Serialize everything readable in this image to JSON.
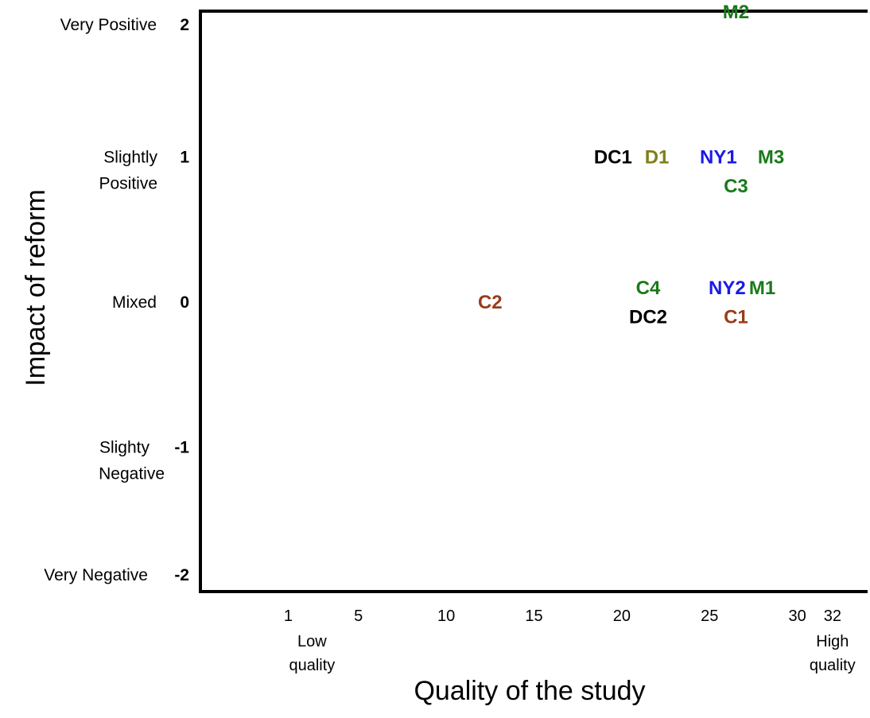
{
  "chart_data": {
    "type": "scatter",
    "title": "",
    "xlabel": "Quality of the study",
    "ylabel": "Impact of reform",
    "xlim": [
      -4,
      34
    ],
    "ylim": [
      -2,
      2
    ],
    "x_ticks": [
      {
        "value": 1,
        "label": "1",
        "sublabel": [
          "Low",
          "quality"
        ]
      },
      {
        "value": 5,
        "label": "5"
      },
      {
        "value": 10,
        "label": "10"
      },
      {
        "value": 15,
        "label": "15"
      },
      {
        "value": 20,
        "label": "20"
      },
      {
        "value": 25,
        "label": "25"
      },
      {
        "value": 30,
        "label": "30"
      },
      {
        "value": 32,
        "label": "32",
        "sublabel": [
          "High",
          "quality"
        ]
      }
    ],
    "y_ticks": [
      {
        "value": 2,
        "label": "2",
        "category": [
          "Very Positive"
        ]
      },
      {
        "value": 1,
        "label": "1",
        "category": [
          "Slightly",
          "Positive"
        ]
      },
      {
        "value": 0,
        "label": "0",
        "category": [
          "Mixed"
        ]
      },
      {
        "value": -1,
        "label": "-1",
        "category": [
          "Slighty",
          "Negative"
        ]
      },
      {
        "value": -2,
        "label": "-2",
        "category": [
          "Very Negative"
        ]
      }
    ],
    "points": [
      {
        "label": "M2",
        "x": 26.5,
        "y": 2.0,
        "color": "#1a7a1a"
      },
      {
        "label": "DC1",
        "x": 19.5,
        "y": 1.0,
        "color": "#000000"
      },
      {
        "label": "D1",
        "x": 22.0,
        "y": 1.0,
        "color": "#7f7f1a"
      },
      {
        "label": "NY1",
        "x": 25.5,
        "y": 1.0,
        "color": "#1a1ae6"
      },
      {
        "label": "M3",
        "x": 28.5,
        "y": 1.0,
        "color": "#1a7a1a"
      },
      {
        "label": "C3",
        "x": 26.5,
        "y": 0.8,
        "color": "#1a7a1a"
      },
      {
        "label": "C4",
        "x": 21.5,
        "y": 0.1,
        "color": "#1a7a1a"
      },
      {
        "label": "NY2",
        "x": 26.0,
        "y": 0.1,
        "color": "#1a1ae6"
      },
      {
        "label": "M1",
        "x": 28.0,
        "y": 0.1,
        "color": "#1a7a1a"
      },
      {
        "label": "C2",
        "x": 12.5,
        "y": 0.0,
        "color": "#993d1a"
      },
      {
        "label": "DC2",
        "x": 21.5,
        "y": -0.1,
        "color": "#000000"
      },
      {
        "label": "C1",
        "x": 26.5,
        "y": -0.1,
        "color": "#993d1a"
      }
    ],
    "colors": {
      "axis": "#000000",
      "green": "#1a7a1a",
      "blue": "#1a1ae6",
      "olive": "#7f7f1a",
      "brown": "#993d1a",
      "black": "#000000"
    },
    "grid": false,
    "legend": "none"
  }
}
